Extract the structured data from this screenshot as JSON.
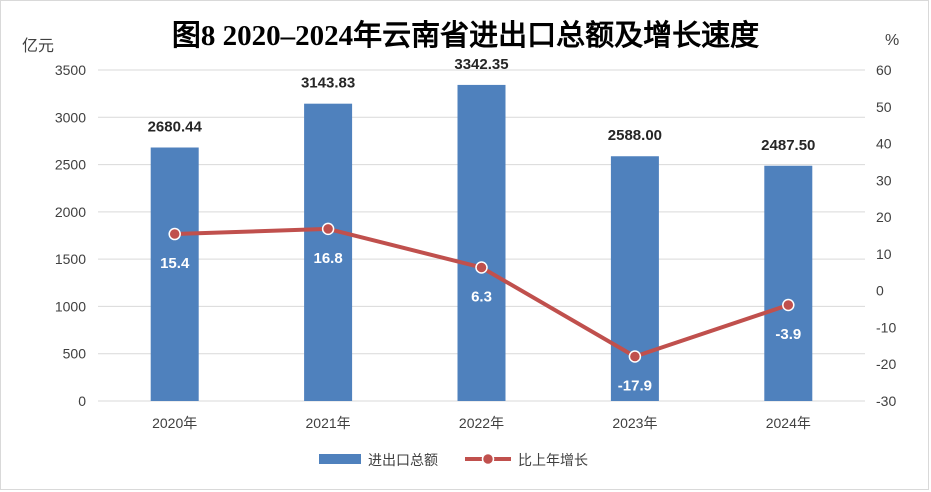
{
  "chart_data": {
    "type": "bar",
    "title": "图8  2020–2024年云南省进出口总额及增长速度",
    "left_unit": "亿元",
    "right_unit": "%",
    "categories": [
      "2020年",
      "2021年",
      "2022年",
      "2023年",
      "2024年"
    ],
    "series": [
      {
        "name": "进出口总额",
        "type": "bar",
        "axis": "left",
        "color": "#4f81bd",
        "values": [
          2680.44,
          3143.83,
          3342.35,
          2588.0,
          2487.5
        ],
        "labels": [
          "2680.44",
          "3143.83",
          "3342.35",
          "2588.00",
          "2487.50"
        ]
      },
      {
        "name": "比上年增长",
        "type": "line",
        "axis": "right",
        "color": "#c0504d",
        "values": [
          15.4,
          16.8,
          6.3,
          -17.9,
          -3.9
        ],
        "labels": [
          "15.4",
          "16.8",
          "6.3",
          "-17.9",
          "-3.9"
        ]
      }
    ],
    "left_axis": {
      "range": [
        0,
        3500
      ],
      "ticks": [
        "0",
        "500",
        "1000",
        "1500",
        "2000",
        "2500",
        "3000",
        "3500"
      ]
    },
    "right_axis": {
      "range": [
        -30,
        60
      ],
      "ticks": [
        "-30",
        "-20",
        "-10",
        "0",
        "10",
        "20",
        "30",
        "40",
        "50",
        "60"
      ]
    },
    "grid": true,
    "legend_position": "bottom"
  }
}
